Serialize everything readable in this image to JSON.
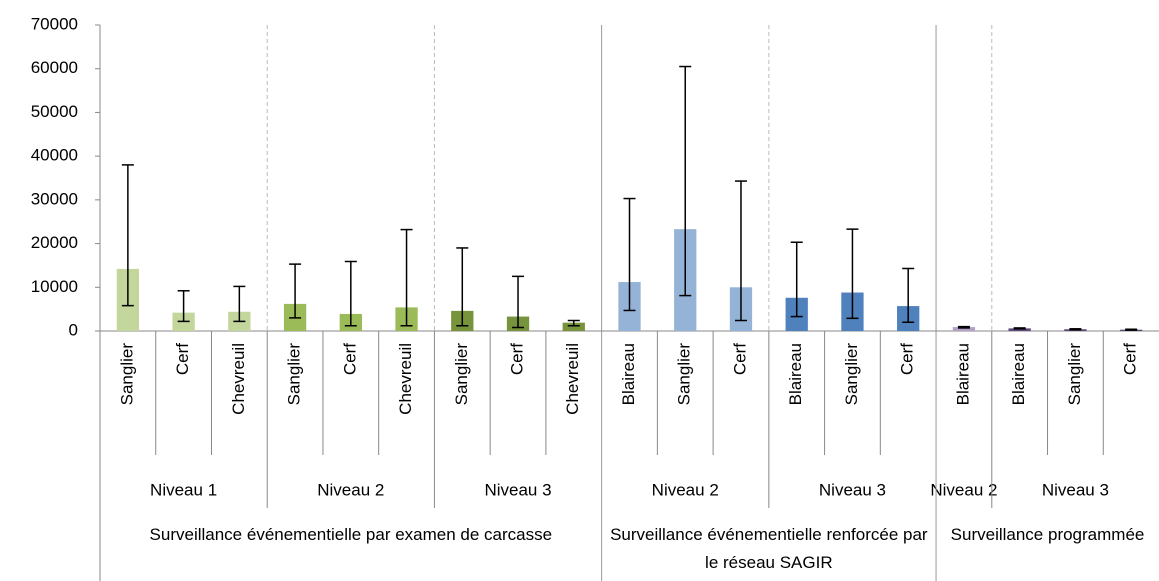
{
  "chart_data": {
    "type": "bar",
    "groups": [
      {
        "label": "Surveillance événementielle par examen de carcasse",
        "subgroups": [
          {
            "label": "Niveau 1",
            "categories": [
              "Sanglier",
              "Cerf",
              "Chevreuil"
            ]
          },
          {
            "label": "Niveau 2",
            "categories": [
              "Sanglier",
              "Cerf",
              "Chevreuil"
            ]
          },
          {
            "label": "Niveau 3",
            "categories": [
              "Sanglier",
              "Cerf",
              "Chevreuil"
            ]
          }
        ]
      },
      {
        "label": "Surveillance événementielle renforcée par le réseau SAGIR",
        "subgroups": [
          {
            "label": "Niveau 2",
            "categories": [
              "Blaireau",
              "Sanglier",
              "Cerf"
            ]
          },
          {
            "label": "Niveau 3",
            "categories": [
              "Blaireau",
              "Sanglier",
              "Cerf"
            ]
          }
        ]
      },
      {
        "label": "Surveillance programmée",
        "subgroups": [
          {
            "label": "Niveau 2",
            "categories": [
              "Blaireau"
            ]
          },
          {
            "label": "Niveau 3",
            "categories": [
              "Blaireau",
              "Sanglier",
              "Cerf"
            ]
          }
        ]
      }
    ],
    "series": [
      {
        "values": [
          14200,
          4200,
          4400,
          6200,
          3900,
          5400,
          4600,
          3300,
          1900,
          11200,
          23300,
          10000,
          7600,
          8800,
          5700,
          900,
          600,
          400,
          300
        ],
        "error_low": [
          5800,
          2200,
          2200,
          3000,
          1200,
          1200,
          1200,
          800,
          1200,
          4700,
          8100,
          2400,
          3300,
          2900,
          2000,
          700,
          500,
          300,
          200
        ],
        "error_high": [
          38000,
          9200,
          10200,
          15300,
          15900,
          23200,
          19000,
          12500,
          2400,
          30300,
          60500,
          34300,
          20300,
          23300,
          14300,
          1000,
          700,
          500,
          400
        ],
        "colors": [
          "#c3d69b",
          "#c3d69b",
          "#c3d69b",
          "#9bbb59",
          "#9bbb59",
          "#9bbb59",
          "#77933c",
          "#77933c",
          "#77933c",
          "#95b3d7",
          "#95b3d7",
          "#95b3d7",
          "#4f81bd",
          "#4f81bd",
          "#4f81bd",
          "#b3a2c7",
          "#5f497a",
          "#5f497a",
          "#5f497a"
        ]
      }
    ],
    "ylim": [
      0,
      70000
    ],
    "yticks": [
      0,
      10000,
      20000,
      30000,
      40000,
      50000,
      60000,
      70000
    ]
  }
}
